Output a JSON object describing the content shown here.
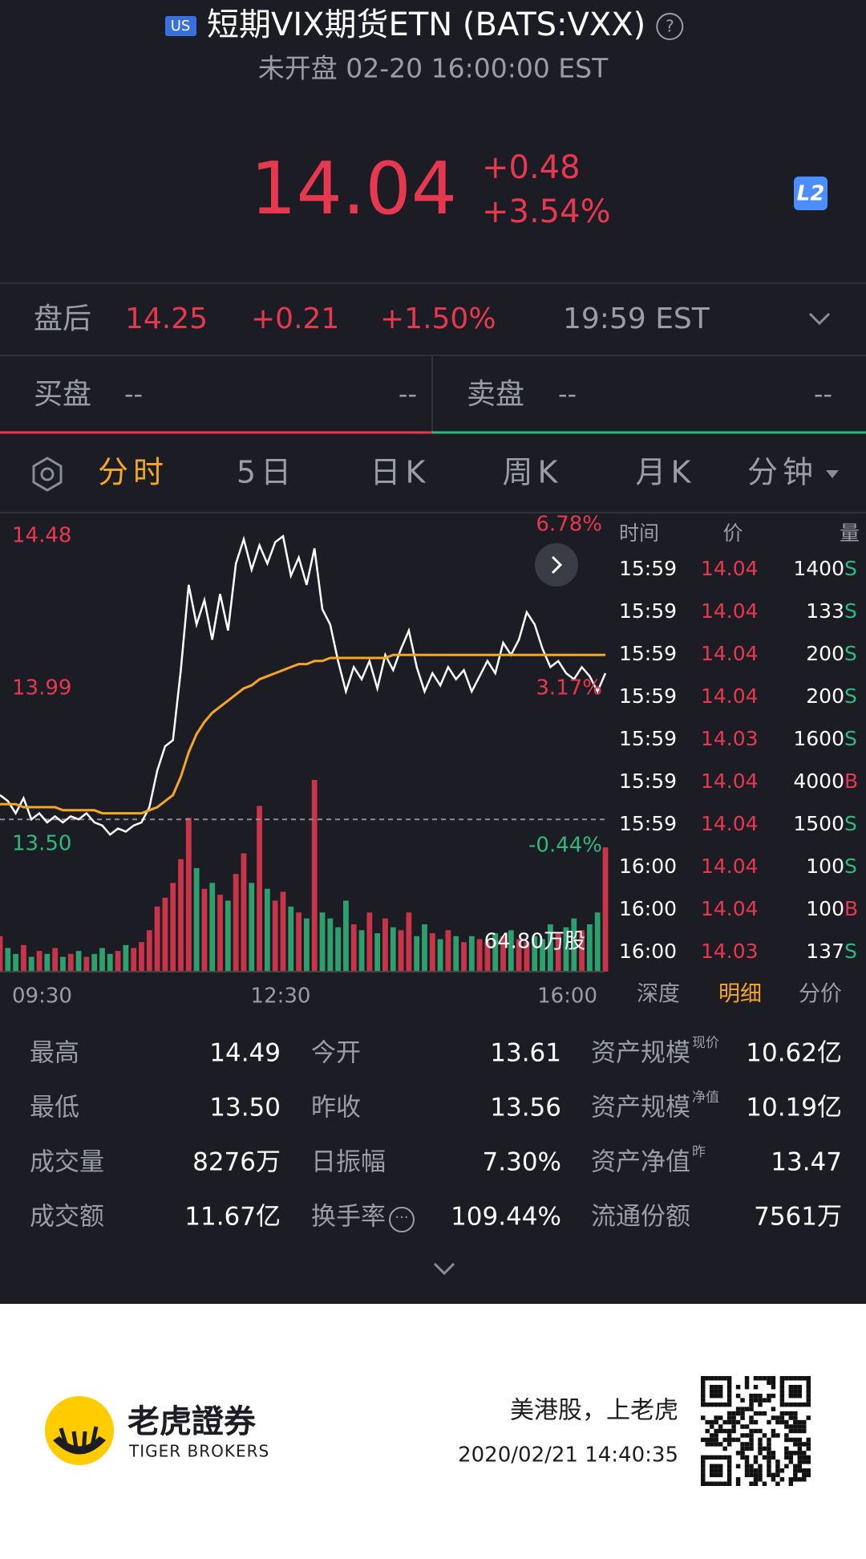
{
  "header": {
    "market": "US",
    "title": "短期VIX期货ETN (BATS:VXX)",
    "status": "未开盘 02-20 16:00:00 EST"
  },
  "quote": {
    "price": "14.04",
    "change": "+0.48",
    "change_pct": "+3.54%",
    "badge": "L2"
  },
  "after_hours": {
    "label": "盘后",
    "price": "14.25",
    "change": "+0.21",
    "change_pct": "+1.50%",
    "time": "19:59 EST"
  },
  "order_book": {
    "bid": {
      "label": "买盘",
      "price": "--",
      "size": "--"
    },
    "ask": {
      "label": "卖盘",
      "price": "--",
      "size": "--"
    }
  },
  "chart_tabs": [
    "分时",
    "5日",
    "日K",
    "周K",
    "月K",
    "分钟"
  ],
  "chart_data": {
    "type": "line",
    "ylim": [
      13.5,
      14.48
    ],
    "yticks": [
      14.48,
      13.99,
      {
        "value": 13.5,
        "label": "13.50"
      }
    ],
    "y2lim": [
      -0.44,
      6.78
    ],
    "y2ticks": [
      {
        "value": 6.78,
        "label": "6.78%"
      },
      {
        "value": 3.17,
        "label": "3.17%"
      },
      {
        "value": -0.44,
        "label": "-0.44%"
      }
    ],
    "x_labels": [
      "09:30",
      "12:30",
      "16:00"
    ],
    "prev_close": 13.56,
    "up_color": "#e8384f",
    "down_color": "#2fb97a",
    "series": [
      {
        "color": "#ffffff",
        "values": [
          13.64,
          13.62,
          13.58,
          13.63,
          13.56,
          13.58,
          13.55,
          13.57,
          13.55,
          13.57,
          13.56,
          13.58,
          13.55,
          13.54,
          13.51,
          13.53,
          13.52,
          13.54,
          13.55,
          13.6,
          13.72,
          13.8,
          13.82,
          14.05,
          14.33,
          14.2,
          14.28,
          14.15,
          14.3,
          14.18,
          14.4,
          14.48,
          14.38,
          14.46,
          14.4,
          14.47,
          14.49,
          14.36,
          14.42,
          14.33,
          14.45,
          14.25,
          14.2,
          14.08,
          13.98,
          14.06,
          14.02,
          14.08,
          13.99,
          14.1,
          14.05,
          14.12,
          14.18,
          14.06,
          13.98,
          14.04,
          14.0,
          14.06,
          14.02,
          14.05,
          13.98,
          14.03,
          14.08,
          14.04,
          14.14,
          14.1,
          14.15,
          14.24,
          14.2,
          14.12,
          14.06,
          14.08,
          14.04,
          14.02,
          14.06,
          14.03,
          13.98,
          14.04
        ]
      },
      {
        "color": "#f5a623",
        "values": [
          13.61,
          13.61,
          13.61,
          13.6,
          13.6,
          13.6,
          13.6,
          13.6,
          13.59,
          13.59,
          13.59,
          13.59,
          13.59,
          13.58,
          13.58,
          13.58,
          13.58,
          13.58,
          13.58,
          13.59,
          13.6,
          13.62,
          13.64,
          13.7,
          13.78,
          13.84,
          13.88,
          13.91,
          13.93,
          13.95,
          13.97,
          13.99,
          14.0,
          14.02,
          14.03,
          14.04,
          14.05,
          14.06,
          14.07,
          14.07,
          14.08,
          14.08,
          14.09,
          14.09,
          14.09,
          14.09,
          14.09,
          14.09,
          14.09,
          14.09,
          14.1,
          14.1,
          14.1,
          14.1,
          14.1,
          14.1,
          14.1,
          14.1,
          14.1,
          14.1,
          14.1,
          14.1,
          14.1,
          14.1,
          14.1,
          14.1,
          14.1,
          14.1,
          14.1,
          14.1,
          14.1,
          14.1,
          14.1,
          14.1,
          14.1,
          14.1,
          14.1,
          14.1
        ]
      }
    ],
    "volume": {
      "max": {
        "value": 64.8,
        "label": "64.80万股"
      },
      "values": [
        12,
        8,
        6,
        9,
        5,
        7,
        6,
        8,
        5,
        6,
        7,
        5,
        6,
        8,
        6,
        7,
        9,
        8,
        10,
        14,
        22,
        25,
        30,
        38,
        52,
        35,
        28,
        30,
        26,
        24,
        33,
        40,
        30,
        56,
        28,
        24,
        27,
        22,
        20,
        18,
        64.8,
        20,
        18,
        15,
        24,
        16,
        14,
        20,
        13,
        18,
        15,
        14,
        20,
        12,
        16,
        13,
        11,
        14,
        12,
        10,
        12,
        11,
        10,
        13,
        12,
        14,
        11,
        10,
        12,
        11,
        16,
        13,
        15,
        18,
        14,
        16,
        20,
        42
      ]
    }
  },
  "trades": {
    "columns": [
      "时间",
      "价",
      "量"
    ],
    "rows": [
      [
        "15:59",
        "14.04",
        "1400",
        "S"
      ],
      [
        "15:59",
        "14.04",
        "133",
        "S"
      ],
      [
        "15:59",
        "14.04",
        "200",
        "S"
      ],
      [
        "15:59",
        "14.04",
        "200",
        "S"
      ],
      [
        "15:59",
        "14.03",
        "1600",
        "S"
      ],
      [
        "15:59",
        "14.04",
        "4000",
        "B"
      ],
      [
        "15:59",
        "14.04",
        "1500",
        "S"
      ],
      [
        "16:00",
        "14.04",
        "100",
        "S"
      ],
      [
        "16:00",
        "14.04",
        "100",
        "B"
      ],
      [
        "16:00",
        "14.03",
        "137",
        "S"
      ]
    ]
  },
  "detail_tabs": [
    "深度",
    "明细",
    "分价"
  ],
  "stats": [
    [
      {
        "label": "最高",
        "value": "14.49"
      },
      {
        "label": "今开",
        "value": "13.61"
      },
      {
        "label": "资产规模",
        "sup": "现价",
        "value": "10.62亿"
      }
    ],
    [
      {
        "label": "最低",
        "value": "13.50"
      },
      {
        "label": "昨收",
        "value": "13.56"
      },
      {
        "label": "资产规模",
        "sup": "净值",
        "value": "10.19亿"
      }
    ],
    [
      {
        "label": "成交量",
        "value": "8276万"
      },
      {
        "label": "日振幅",
        "value": "7.30%"
      },
      {
        "label": "资产净值",
        "sup": "昨",
        "value": "13.47"
      }
    ],
    [
      {
        "label": "成交额",
        "value": "11.67亿"
      },
      {
        "label": "换手率",
        "value": "109.44%"
      },
      {
        "label": "流通份额",
        "value": "7561万"
      }
    ]
  ],
  "footer": {
    "brand": "老虎證券",
    "brand_en": "TIGER BROKERS",
    "slogan": "美港股，上老虎",
    "timestamp": "2020/02/21 14:40:35"
  }
}
